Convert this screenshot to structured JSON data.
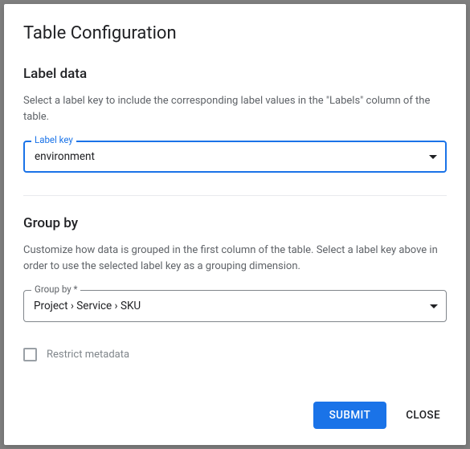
{
  "dialog": {
    "title": "Table Configuration",
    "label_data": {
      "heading": "Label data",
      "description": "Select a label key to include the corresponding label values in the \"Labels\" column of the table.",
      "field_label": "Label key",
      "field_value": "environment"
    },
    "group_by": {
      "heading": "Group by",
      "description": "Customize how data is grouped in the first column of the table. Select a label key above in order to use the selected label key as a grouping dimension.",
      "field_label": "Group by *",
      "field_value": "Project › Service › SKU"
    },
    "restrict_metadata": {
      "label": "Restrict metadata",
      "checked": false
    },
    "actions": {
      "submit": "Submit",
      "close": "Close"
    }
  },
  "colors": {
    "primary": "#1a73e8",
    "text_primary": "#202124",
    "text_secondary": "#5f6368",
    "border": "#80868b",
    "divider": "#e8eaed",
    "disabled": "#9aa0a6"
  }
}
